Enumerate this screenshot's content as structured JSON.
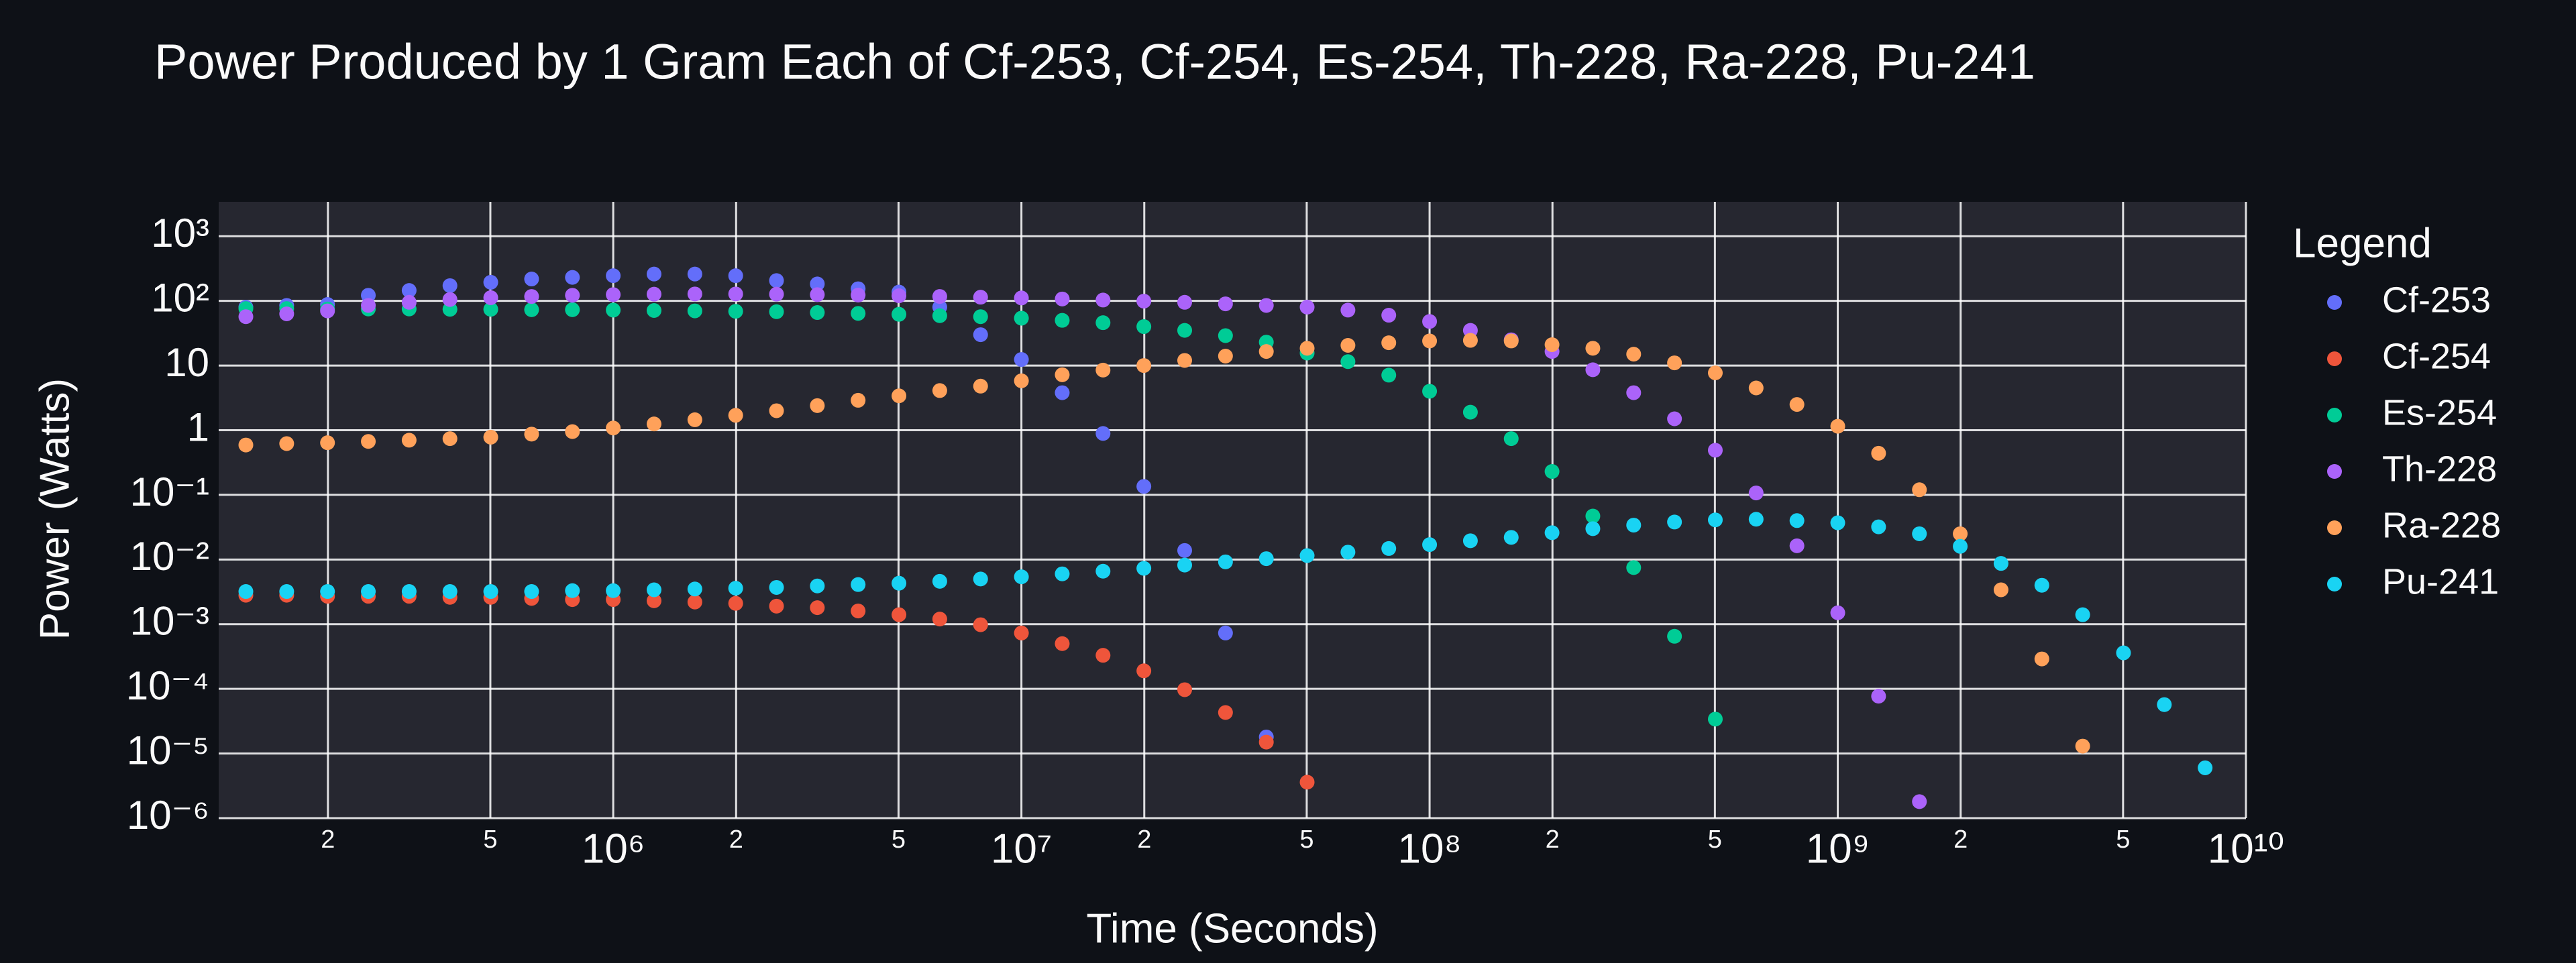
{
  "chart_data": {
    "type": "scatter",
    "title": "Power Produced by 1 Gram Each of Cf-253, Cf-254, Es-254, Th-228, Ra-228, Pu-241",
    "x_label": "Time (Seconds)",
    "y_label": "Power (Watts)",
    "legend_title": "Legend",
    "legend_position": "right",
    "xscale": "log",
    "yscale": "log",
    "grid": true,
    "xlim": [
      108000,
      10000000000
    ],
    "ylim": [
      1e-06,
      3400
    ],
    "xticks": [
      {
        "value": 200000,
        "label": "2"
      },
      {
        "value": 500000,
        "label": "5"
      },
      {
        "value": 1000000,
        "label": "10⁶"
      },
      {
        "value": 2000000,
        "label": "2"
      },
      {
        "value": 5000000,
        "label": "5"
      },
      {
        "value": 10000000,
        "label": "10⁷"
      },
      {
        "value": 20000000,
        "label": "2"
      },
      {
        "value": 50000000,
        "label": "5"
      },
      {
        "value": 100000000,
        "label": "10⁸"
      },
      {
        "value": 200000000,
        "label": "2"
      },
      {
        "value": 500000000,
        "label": "5"
      },
      {
        "value": 1000000000,
        "label": "10⁹"
      },
      {
        "value": 2000000000,
        "label": "2"
      },
      {
        "value": 5000000000,
        "label": "5"
      },
      {
        "value": 10000000000,
        "label": "10¹⁰"
      }
    ],
    "yticks": [
      {
        "value": 1000,
        "label": "10³"
      },
      {
        "value": 100,
        "label": "10²"
      },
      10,
      1,
      {
        "value": 0.1,
        "label": "10⁻¹"
      },
      {
        "value": 0.01,
        "label": "10⁻²"
      },
      {
        "value": 0.001,
        "label": "10⁻³"
      },
      {
        "value": 0.0001,
        "label": "10⁻⁴"
      },
      {
        "value": 1e-05,
        "label": "10⁻⁵"
      },
      {
        "value": 1e-06,
        "label": "10⁻⁶"
      }
    ],
    "x": [
      125893,
      158489,
      199526,
      251189,
      316228,
      398107,
      501187,
      630957,
      794328,
      1000000,
      1258925,
      1584893,
      1995262,
      2511886,
      3162278,
      3981072,
      5011872,
      6309573,
      7943282,
      10000000,
      12589254,
      15848932,
      19952623,
      25118864,
      31622777,
      39810717,
      50118723,
      63095734,
      79432823,
      100000000,
      125892541,
      158489319,
      199526231,
      251188643,
      316227766,
      398107171,
      501187234,
      630957344,
      794328235,
      1000000000,
      1258925412,
      1584893192,
      1995262315,
      2511886432,
      3162277660,
      3981071706,
      5011872336,
      6309573445,
      7943282347
    ],
    "series": [
      {
        "name": "Cf-253",
        "color": "#636efa",
        "values": [
          80,
          85,
          88,
          122,
          145,
          172,
          194,
          218,
          231,
          245,
          260,
          260,
          245,
          206,
          183,
          154,
          137,
          80,
          30,
          12.4,
          3.8,
          0.89,
          0.135,
          0.0138,
          0.00073,
          1.8e-05,
          null,
          null,
          null,
          null,
          null,
          null,
          null,
          null,
          null,
          null,
          null,
          null,
          null,
          null,
          null,
          null,
          null,
          null,
          null,
          null,
          null,
          null,
          null
        ]
      },
      {
        "name": "Cf-254",
        "color": "#ef553b",
        "values": [
          0.0028,
          0.0028,
          0.0027,
          0.0027,
          0.0027,
          0.0026,
          0.0026,
          0.0025,
          0.0024,
          0.0024,
          0.0023,
          0.0022,
          0.0021,
          0.0019,
          0.0018,
          0.0016,
          0.0014,
          0.0012,
          0.00098,
          0.00073,
          0.0005,
          0.00033,
          0.00019,
          9.7e-05,
          4.3e-05,
          1.5e-05,
          3.6e-06,
          null,
          null,
          null,
          null,
          null,
          null,
          null,
          null,
          null,
          null,
          null,
          null,
          null,
          null,
          null,
          null,
          null,
          null,
          null,
          null,
          null,
          null
        ]
      },
      {
        "name": "Es-254",
        "color": "#00cc96",
        "values": [
          76,
          76,
          75,
          75,
          75,
          74,
          74,
          73,
          73,
          72,
          71,
          70,
          69,
          68,
          66,
          64,
          62,
          59,
          57,
          54,
          50,
          46,
          40,
          35,
          29,
          23,
          15.6,
          11.5,
          7.1,
          4,
          1.9,
          0.74,
          0.23,
          0.047,
          0.0075,
          0.00065,
          3.4e-05,
          null,
          null,
          null,
          null,
          null,
          null,
          null,
          null,
          null,
          null,
          null,
          null
        ]
      },
      {
        "name": "Th-228",
        "color": "#ab63fa",
        "values": [
          57,
          63,
          70,
          85,
          95,
          105,
          112,
          117,
          122,
          125,
          127,
          128,
          128,
          127,
          125,
          123,
          120,
          117,
          114,
          111,
          107,
          103,
          99,
          95,
          90,
          85,
          80,
          72,
          60,
          48,
          35,
          25,
          16.5,
          8.6,
          3.8,
          1.5,
          0.49,
          0.107,
          0.0163,
          0.0015,
          7.7e-05,
          1.8e-06,
          null,
          null,
          null,
          null,
          null,
          null,
          null
        ]
      },
      {
        "name": "Ra-228",
        "color": "#ffa15a",
        "values": [
          0.59,
          0.62,
          0.64,
          0.67,
          0.7,
          0.74,
          0.78,
          0.87,
          0.95,
          1.08,
          1.25,
          1.45,
          1.7,
          2,
          2.4,
          2.9,
          3.4,
          4.1,
          4.8,
          5.8,
          7.2,
          8.5,
          10,
          12,
          14,
          16.5,
          18.5,
          20.5,
          22.5,
          24,
          24.5,
          24,
          21,
          18.5,
          15,
          11,
          7.7,
          4.5,
          2.5,
          1.15,
          0.44,
          0.12,
          0.025,
          0.0034,
          0.00029,
          1.3e-05,
          null,
          null,
          null
        ]
      },
      {
        "name": "Pu-241",
        "color": "#19d3f3",
        "values": [
          0.0032,
          0.0032,
          0.0032,
          0.0032,
          0.0032,
          0.0032,
          0.0032,
          0.0032,
          0.0033,
          0.0033,
          0.0034,
          0.0035,
          0.0036,
          0.0037,
          0.0039,
          0.0041,
          0.0043,
          0.0046,
          0.005,
          0.0054,
          0.006,
          0.0066,
          0.0073,
          0.0082,
          0.0092,
          0.0103,
          0.0115,
          0.013,
          0.0148,
          0.017,
          0.0195,
          0.022,
          0.026,
          0.03,
          0.034,
          0.038,
          0.041,
          0.042,
          0.04,
          0.037,
          0.032,
          0.025,
          0.016,
          0.0087,
          0.004,
          0.0014,
          0.00036,
          5.7e-05,
          6e-06
        ]
      }
    ]
  }
}
